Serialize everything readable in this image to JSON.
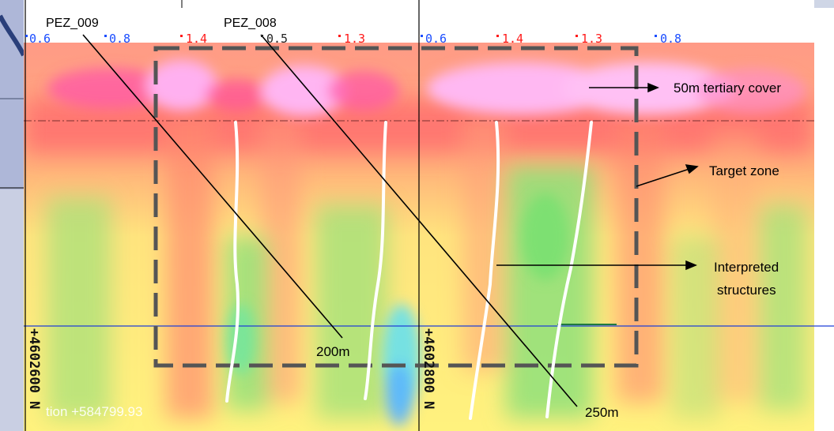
{
  "wells": [
    {
      "name": "PEZ_009",
      "depth_label": "200m"
    },
    {
      "name": "PEZ_008",
      "depth_label": "250m"
    }
  ],
  "values": [
    {
      "text": "0.6",
      "color": "#1a4dff"
    },
    {
      "text": "0.8",
      "color": "#1a4dff"
    },
    {
      "text": "1.4",
      "color": "#ff1a1a"
    },
    {
      "text": "0.5",
      "color": "#222222"
    },
    {
      "text": "1.3",
      "color": "#ff1a1a"
    },
    {
      "text": "0.6",
      "color": "#1a4dff"
    },
    {
      "text": "1.4",
      "color": "#ff1a1a"
    },
    {
      "text": "1.3",
      "color": "#ff1a1a"
    },
    {
      "text": "0.8",
      "color": "#1a4dff"
    }
  ],
  "annotations": {
    "cover": "50m tertiary cover",
    "target": "Target zone",
    "structures_line1": "Interpreted",
    "structures_line2": "structures"
  },
  "coords": {
    "northing_a": "+4602600 N",
    "northing_b": "+4602800 N",
    "section": "tion +584799.93"
  },
  "colors": {
    "cover_pink": "#f7b8f2",
    "high_red": "#ff6b6b",
    "mid_yellow": "#fff07a",
    "low_green": "#8fe07a",
    "lowest_cyan": "#5ee8e8",
    "target_box": "#555555",
    "interpreted_lines": "#ffffff",
    "horizon_blue": "#1f3fd6"
  }
}
